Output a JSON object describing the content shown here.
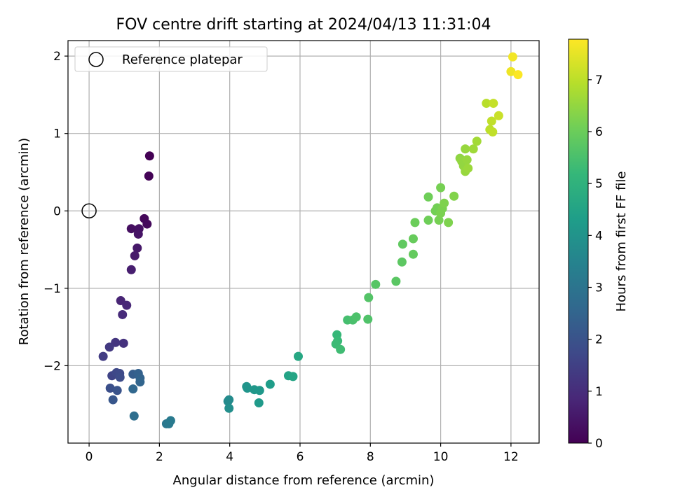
{
  "chart_data": {
    "type": "scatter",
    "title": "FOV centre drift starting at 2024/04/13 11:31:04",
    "xlabel": "Angular distance from reference (arcmin)",
    "ylabel": "Rotation from reference (arcmin)",
    "xlim": [
      -0.6,
      12.8
    ],
    "ylim": [
      -3.0,
      2.2
    ],
    "xticks": [
      0,
      2,
      4,
      6,
      8,
      10,
      12
    ],
    "yticks": [
      -2,
      -1,
      0,
      1,
      2
    ],
    "xtick_labels": [
      "0",
      "2",
      "4",
      "6",
      "8",
      "10",
      "12"
    ],
    "ytick_labels": [
      "−2",
      "−1",
      "0",
      "1",
      "2"
    ],
    "grid": true,
    "legend": {
      "placement": "top-left",
      "entries": [
        {
          "label": "Reference platepar",
          "marker": "open-circle",
          "x": 0,
          "y": 0
        }
      ]
    },
    "colorbar": {
      "label": "Hours from first FF file",
      "colormap": "viridis",
      "range": [
        0,
        7.78
      ],
      "ticks": [
        0,
        1,
        2,
        3,
        4,
        5,
        6,
        7
      ],
      "tick_labels": [
        "0",
        "1",
        "2",
        "3",
        "4",
        "5",
        "6",
        "7"
      ]
    },
    "colormap_stops": [
      "#440154",
      "#482878",
      "#3e4989",
      "#31688e",
      "#26828e",
      "#1f9e89",
      "#35b779",
      "#6ece58",
      "#b5de2b",
      "#fde725"
    ],
    "series": [
      {
        "points": [
          {
            "x": 1.72,
            "y": 0.71,
            "c": 0.0
          },
          {
            "x": 1.7,
            "y": 0.45,
            "c": 0.05
          },
          {
            "x": 1.57,
            "y": -0.1,
            "c": 0.15
          },
          {
            "x": 1.65,
            "y": -0.17,
            "c": 0.2
          },
          {
            "x": 1.2,
            "y": -0.23,
            "c": 0.3
          },
          {
            "x": 1.42,
            "y": -0.23,
            "c": 0.35
          },
          {
            "x": 1.4,
            "y": -0.3,
            "c": 0.4
          },
          {
            "x": 1.37,
            "y": -0.48,
            "c": 0.5
          },
          {
            "x": 1.3,
            "y": -0.58,
            "c": 0.55
          },
          {
            "x": 1.2,
            "y": -0.76,
            "c": 0.65
          },
          {
            "x": 0.9,
            "y": -1.16,
            "c": 0.8
          },
          {
            "x": 1.07,
            "y": -1.22,
            "c": 0.85
          },
          {
            "x": 0.95,
            "y": -1.34,
            "c": 0.95
          },
          {
            "x": 0.98,
            "y": -1.71,
            "c": 1.1
          },
          {
            "x": 0.75,
            "y": -1.7,
            "c": 1.2
          },
          {
            "x": 0.58,
            "y": -1.76,
            "c": 1.3
          },
          {
            "x": 0.4,
            "y": -1.88,
            "c": 1.4
          },
          {
            "x": 0.65,
            "y": -2.13,
            "c": 1.6
          },
          {
            "x": 0.78,
            "y": -2.09,
            "c": 1.7
          },
          {
            "x": 0.87,
            "y": -2.1,
            "c": 1.75
          },
          {
            "x": 0.88,
            "y": -2.15,
            "c": 1.8
          },
          {
            "x": 0.6,
            "y": -2.29,
            "c": 1.9
          },
          {
            "x": 0.8,
            "y": -2.32,
            "c": 2.0
          },
          {
            "x": 0.68,
            "y": -2.44,
            "c": 2.1
          },
          {
            "x": 1.25,
            "y": -2.11,
            "c": 2.3
          },
          {
            "x": 1.4,
            "y": -2.1,
            "c": 2.4
          },
          {
            "x": 1.45,
            "y": -2.16,
            "c": 2.45
          },
          {
            "x": 1.45,
            "y": -2.21,
            "c": 2.5
          },
          {
            "x": 1.25,
            "y": -2.3,
            "c": 2.6
          },
          {
            "x": 1.28,
            "y": -2.65,
            "c": 2.8
          },
          {
            "x": 2.2,
            "y": -2.75,
            "c": 3.1
          },
          {
            "x": 2.27,
            "y": -2.75,
            "c": 3.15
          },
          {
            "x": 2.32,
            "y": -2.71,
            "c": 3.2
          },
          {
            "x": 3.95,
            "y": -2.46,
            "c": 3.7
          },
          {
            "x": 3.98,
            "y": -2.44,
            "c": 3.75
          },
          {
            "x": 3.98,
            "y": -2.55,
            "c": 3.85
          },
          {
            "x": 4.48,
            "y": -2.27,
            "c": 4.0
          },
          {
            "x": 4.5,
            "y": -2.29,
            "c": 4.05
          },
          {
            "x": 4.7,
            "y": -2.31,
            "c": 4.1
          },
          {
            "x": 4.85,
            "y": -2.32,
            "c": 4.15
          },
          {
            "x": 4.83,
            "y": -2.48,
            "c": 4.2
          },
          {
            "x": 5.15,
            "y": -2.24,
            "c": 4.3
          },
          {
            "x": 5.67,
            "y": -2.13,
            "c": 4.5
          },
          {
            "x": 5.8,
            "y": -2.14,
            "c": 4.55
          },
          {
            "x": 5.95,
            "y": -1.88,
            "c": 4.65
          },
          {
            "x": 7.05,
            "y": -1.6,
            "c": 5.2
          },
          {
            "x": 7.07,
            "y": -1.68,
            "c": 5.25
          },
          {
            "x": 7.02,
            "y": -1.72,
            "c": 5.3
          },
          {
            "x": 7.15,
            "y": -1.79,
            "c": 5.35
          },
          {
            "x": 7.35,
            "y": -1.41,
            "c": 5.45
          },
          {
            "x": 7.5,
            "y": -1.41,
            "c": 5.5
          },
          {
            "x": 7.6,
            "y": -1.37,
            "c": 5.55
          },
          {
            "x": 7.93,
            "y": -1.4,
            "c": 5.6
          },
          {
            "x": 7.95,
            "y": -1.12,
            "c": 5.65
          },
          {
            "x": 8.15,
            "y": -0.95,
            "c": 5.7
          },
          {
            "x": 8.73,
            "y": -0.91,
            "c": 5.75
          },
          {
            "x": 8.9,
            "y": -0.66,
            "c": 5.8
          },
          {
            "x": 8.92,
            "y": -0.43,
            "c": 5.85
          },
          {
            "x": 9.22,
            "y": -0.56,
            "c": 5.9
          },
          {
            "x": 9.22,
            "y": -0.36,
            "c": 5.95
          },
          {
            "x": 9.27,
            "y": -0.15,
            "c": 6.0
          },
          {
            "x": 9.65,
            "y": -0.12,
            "c": 6.05
          },
          {
            "x": 9.65,
            "y": 0.18,
            "c": 6.05
          },
          {
            "x": 9.85,
            "y": 0.0,
            "c": 6.1
          },
          {
            "x": 9.9,
            "y": 0.04,
            "c": 6.1
          },
          {
            "x": 9.95,
            "y": -0.12,
            "c": 6.15
          },
          {
            "x": 10.0,
            "y": 0.3,
            "c": 6.15
          },
          {
            "x": 10.0,
            "y": -0.03,
            "c": 6.2
          },
          {
            "x": 10.05,
            "y": 0.03,
            "c": 6.2
          },
          {
            "x": 10.1,
            "y": 0.1,
            "c": 6.25
          },
          {
            "x": 10.22,
            "y": -0.15,
            "c": 6.25
          },
          {
            "x": 10.38,
            "y": 0.19,
            "c": 6.3
          },
          {
            "x": 10.55,
            "y": 0.68,
            "c": 6.45
          },
          {
            "x": 10.6,
            "y": 0.64,
            "c": 6.5
          },
          {
            "x": 10.65,
            "y": 0.58,
            "c": 6.5
          },
          {
            "x": 10.7,
            "y": 0.51,
            "c": 6.55
          },
          {
            "x": 10.7,
            "y": 0.8,
            "c": 6.55
          },
          {
            "x": 10.75,
            "y": 0.66,
            "c": 6.55
          },
          {
            "x": 10.78,
            "y": 0.55,
            "c": 6.6
          },
          {
            "x": 10.93,
            "y": 0.8,
            "c": 6.65
          },
          {
            "x": 11.03,
            "y": 0.9,
            "c": 6.7
          },
          {
            "x": 11.3,
            "y": 1.39,
            "c": 6.95
          },
          {
            "x": 11.4,
            "y": 1.05,
            "c": 7.0
          },
          {
            "x": 11.45,
            "y": 1.16,
            "c": 7.05
          },
          {
            "x": 11.48,
            "y": 1.02,
            "c": 7.05
          },
          {
            "x": 11.5,
            "y": 1.39,
            "c": 7.1
          },
          {
            "x": 11.65,
            "y": 1.23,
            "c": 7.15
          },
          {
            "x": 12.0,
            "y": 1.8,
            "c": 7.6
          },
          {
            "x": 12.05,
            "y": 1.99,
            "c": 7.65
          },
          {
            "x": 12.2,
            "y": 1.76,
            "c": 7.75
          }
        ]
      }
    ]
  }
}
